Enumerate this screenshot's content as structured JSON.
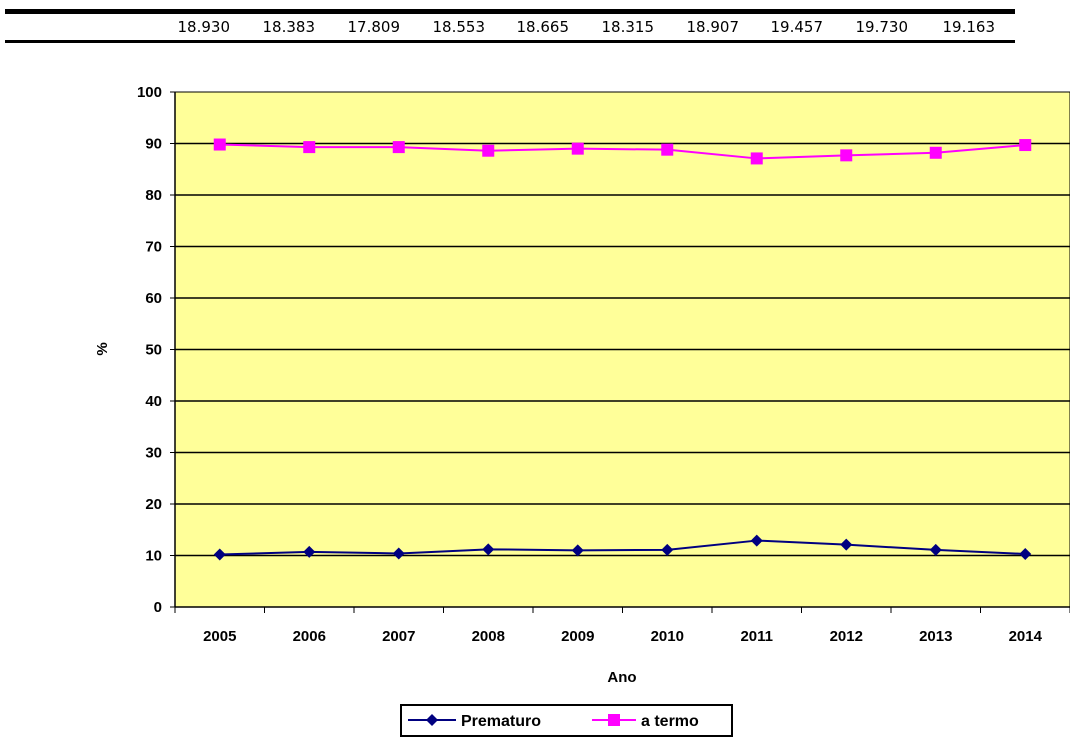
{
  "table": {
    "totals": [
      "18.930",
      "18.383",
      "17.809",
      "18.553",
      "18.665",
      "18.315",
      "18.907",
      "19.457",
      "19.730",
      "19.163"
    ]
  },
  "colors": {
    "plot_background": "#ffff99",
    "prematuro": "#000080",
    "a_termo": "#ff00ff",
    "gridline": "#000000"
  },
  "chart_data": {
    "type": "line",
    "categories": [
      "2005",
      "2006",
      "2007",
      "2008",
      "2009",
      "2010",
      "2011",
      "2012",
      "2013",
      "2014"
    ],
    "series": [
      {
        "name": "Prematuro",
        "marker": "diamond",
        "values": [
          10.2,
          10.7,
          10.4,
          11.2,
          11.0,
          11.1,
          12.9,
          12.1,
          11.1,
          10.3
        ]
      },
      {
        "name": "a termo",
        "marker": "square",
        "values": [
          89.8,
          89.3,
          89.3,
          88.6,
          89.0,
          88.8,
          87.1,
          87.7,
          88.2,
          89.7
        ]
      }
    ],
    "title": "",
    "xlabel": "Ano",
    "ylabel": "%",
    "ylim": [
      0,
      100
    ],
    "yticks": [
      0,
      10,
      20,
      30,
      40,
      50,
      60,
      70,
      80,
      90,
      100
    ],
    "grid": true,
    "legend": "bottom"
  }
}
